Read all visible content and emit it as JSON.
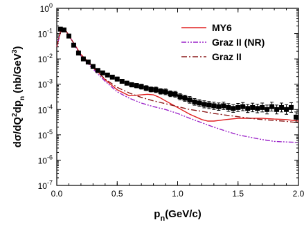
{
  "chart_data": {
    "type": "line",
    "xlabel": "p",
    "xlabel_sub": "n",
    "xlabel_unit": "(GeV/c)",
    "ylabel_parts": [
      "dσ/dQ",
      "2",
      "dp",
      "n",
      " (nb/GeV",
      "3",
      ")"
    ],
    "xlim": [
      0.0,
      2.0
    ],
    "ylim": [
      1e-07,
      1
    ],
    "y_log_scale": true,
    "x_ticks": [
      0.0,
      0.5,
      1.0,
      1.5,
      2.0
    ],
    "x_tick_labels": [
      "0.0",
      "0.5",
      "1.0",
      "1.5",
      "2.0"
    ],
    "y_tick_exponents": [
      -7,
      -6,
      -5,
      -4,
      -3,
      -2,
      -1,
      0
    ],
    "legend_position": "top-right",
    "series": [
      {
        "name": "MY6",
        "style": "solid",
        "color": "#e02020",
        "x": [
          0.0,
          0.03,
          0.05,
          0.08,
          0.12,
          0.2,
          0.3,
          0.4,
          0.5,
          0.6,
          0.7,
          0.75,
          0.8,
          0.85,
          0.9,
          1.0,
          1.1,
          1.2,
          1.25,
          1.3,
          1.4,
          1.5,
          1.6,
          1.7,
          1.8,
          1.9,
          2.0
        ],
        "y": [
          0.03,
          0.12,
          0.15,
          0.12,
          0.06,
          0.015,
          0.005,
          0.0015,
          0.0006,
          0.00035,
          0.00038,
          0.0004,
          0.00038,
          0.0003,
          0.00022,
          0.00012,
          6.5e-05,
          4e-05,
          3.5e-05,
          3.5e-05,
          4e-05,
          4.5e-05,
          4.5e-05,
          4.5e-05,
          4.2e-05,
          4e-05,
          3.5e-05
        ]
      },
      {
        "name": "Graz II (NR)",
        "style": "dash-dot-dot",
        "color": "#9a20c8",
        "x": [
          0.0,
          0.03,
          0.05,
          0.08,
          0.12,
          0.2,
          0.3,
          0.4,
          0.5,
          0.6,
          0.7,
          0.8,
          0.9,
          1.0,
          1.1,
          1.2,
          1.3,
          1.4,
          1.5,
          1.6,
          1.7,
          1.8,
          1.9,
          2.0
        ],
        "y": [
          0.03,
          0.11,
          0.15,
          0.12,
          0.06,
          0.013,
          0.004,
          0.0013,
          0.0005,
          0.00028,
          0.00018,
          0.00013,
          0.0001,
          7e-05,
          4.5e-05,
          3e-05,
          2e-05,
          1.4e-05,
          1e-05,
          8e-06,
          6.5e-06,
          5.5e-06,
          5.2e-06,
          5e-06
        ]
      },
      {
        "name": "Graz II",
        "style": "dash-dot",
        "color": "#8b1a1a",
        "x": [
          0.0,
          0.03,
          0.05,
          0.08,
          0.12,
          0.2,
          0.3,
          0.4,
          0.5,
          0.6,
          0.7,
          0.8,
          0.9,
          1.0,
          1.1,
          1.2,
          1.3,
          1.4,
          1.5,
          1.6,
          1.7,
          1.8,
          1.9,
          2.0
        ],
        "y": [
          0.03,
          0.11,
          0.15,
          0.12,
          0.06,
          0.014,
          0.0045,
          0.0016,
          0.00075,
          0.00045,
          0.0003,
          0.00022,
          0.00017,
          0.00013,
          0.0001,
          8.5e-05,
          7e-05,
          6e-05,
          5.2e-05,
          4.5e-05,
          4e-05,
          3.7e-05,
          3.4e-05,
          3e-05
        ]
      }
    ],
    "data_points": {
      "name": "",
      "marker": "square",
      "color": "#000000",
      "x": [
        0.03,
        0.06,
        0.1,
        0.14,
        0.18,
        0.22,
        0.26,
        0.3,
        0.34,
        0.38,
        0.42,
        0.46,
        0.5,
        0.54,
        0.58,
        0.62,
        0.66,
        0.7,
        0.74,
        0.78,
        0.82,
        0.86,
        0.9,
        0.94,
        0.98,
        1.02,
        1.06,
        1.1,
        1.14,
        1.18,
        1.22,
        1.26,
        1.3,
        1.34,
        1.38,
        1.42,
        1.46,
        1.5,
        1.54,
        1.58,
        1.62,
        1.66,
        1.7,
        1.74,
        1.78,
        1.82,
        1.86,
        1.9,
        1.94,
        1.98
      ],
      "y": [
        0.15,
        0.14,
        0.08,
        0.035,
        0.017,
        0.01,
        0.0075,
        0.005,
        0.0035,
        0.0028,
        0.0023,
        0.0019,
        0.0016,
        0.0013,
        0.0011,
        0.00095,
        0.00088,
        0.0008,
        0.0007,
        0.00062,
        0.0006,
        0.00052,
        0.0005,
        0.00042,
        0.0004,
        0.00032,
        0.00028,
        0.00024,
        0.0002,
        0.00018,
        0.00016,
        0.00015,
        0.00014,
        0.00013,
        0.00014,
        0.00012,
        0.00011,
        0.00012,
        0.00013,
        0.00011,
        0.00012,
        0.00011,
        0.00012,
        0.0001,
        0.00013,
        0.0001,
        0.00012,
        0.0001,
        0.00012,
        5e-05
      ],
      "err_factor": [
        1.1,
        1.1,
        1.1,
        1.12,
        1.12,
        1.12,
        1.15,
        1.15,
        1.15,
        1.15,
        1.18,
        1.18,
        1.2,
        1.2,
        1.2,
        1.22,
        1.22,
        1.25,
        1.25,
        1.25,
        1.28,
        1.28,
        1.3,
        1.3,
        1.3,
        1.32,
        1.32,
        1.35,
        1.35,
        1.35,
        1.38,
        1.38,
        1.4,
        1.4,
        1.4,
        1.42,
        1.42,
        1.45,
        1.45,
        1.45,
        1.48,
        1.48,
        1.5,
        1.5,
        1.5,
        1.5,
        1.5,
        1.55,
        1.55,
        1.6
      ]
    }
  }
}
